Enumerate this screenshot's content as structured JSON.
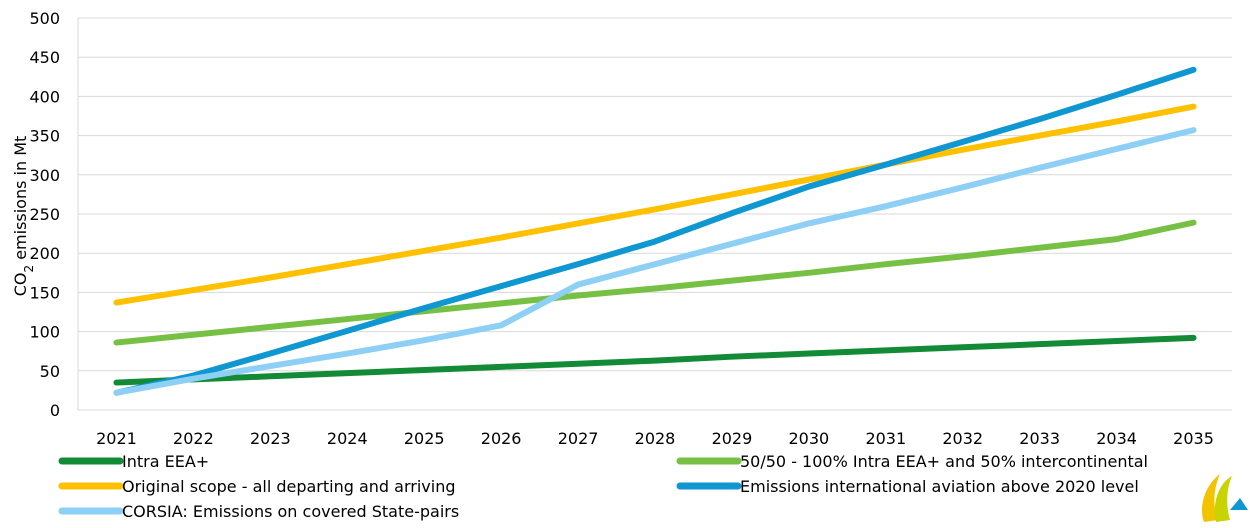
{
  "chart_data": {
    "type": "line",
    "title": "",
    "xlabel": "",
    "ylabel_main": "CO",
    "ylabel_sub": "2",
    "ylabel_rest": " emissions in Mt",
    "ylim": [
      0,
      500
    ],
    "yticks": [
      0,
      50,
      100,
      150,
      200,
      250,
      300,
      350,
      400,
      450,
      500
    ],
    "grid": true,
    "legend_position": "bottom",
    "x": [
      "2021",
      "2022",
      "2023",
      "2024",
      "2025",
      "2026",
      "2027",
      "2028",
      "2029",
      "2030",
      "2031",
      "2032",
      "2033",
      "2034",
      "2035"
    ],
    "series": [
      {
        "name": "Intra EEA+",
        "color": "#138a36",
        "values": [
          35,
          39,
          43,
          47,
          51,
          55,
          59,
          63,
          68,
          72,
          76,
          80,
          84,
          88,
          92
        ]
      },
      {
        "name": "50/50  - 100% Intra EEA+ and 50% intercontinental",
        "color": "#76c043",
        "values": [
          86,
          96,
          106,
          116,
          126,
          136,
          146,
          155,
          165,
          175,
          186,
          196,
          207,
          218,
          239
        ]
      },
      {
        "name": "Original scope - all departing and arriving",
        "color": "#ffc000",
        "values": [
          137,
          153,
          169,
          186,
          203,
          220,
          238,
          256,
          275,
          294,
          313,
          332,
          350,
          368,
          387
        ]
      },
      {
        "name": "Emissions international aviation above 2020 level",
        "color": "#0e97d1",
        "values": [
          22,
          44,
          72,
          101,
          130,
          158,
          186,
          215,
          251,
          285,
          313,
          342,
          371,
          402,
          434
        ]
      },
      {
        "name": "CORSIA: Emissions on covered State-pairs",
        "color": "#8ecff5",
        "values": [
          22,
          40,
          56,
          72,
          89,
          108,
          160,
          186,
          212,
          238,
          260,
          284,
          309,
          333,
          357
        ]
      }
    ]
  },
  "logo": {
    "name": "corner-logo"
  }
}
